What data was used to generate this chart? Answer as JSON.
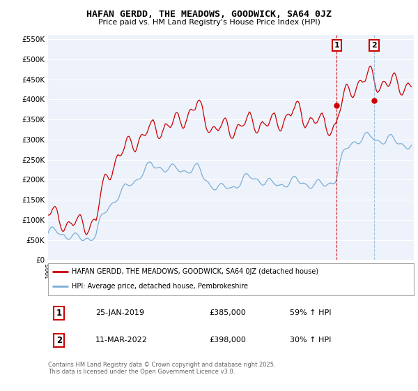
{
  "title": "HAFAN GERDD, THE MEADOWS, GOODWICK, SA64 0JZ",
  "subtitle": "Price paid vs. HM Land Registry's House Price Index (HPI)",
  "legend_label_red": "HAFAN GERDD, THE MEADOWS, GOODWICK, SA64 0JZ (detached house)",
  "legend_label_blue": "HPI: Average price, detached house, Pembrokeshire",
  "annotation1_date": "25-JAN-2019",
  "annotation1_price": "£385,000",
  "annotation1_hpi": "59% ↑ HPI",
  "annotation2_date": "11-MAR-2022",
  "annotation2_price": "£398,000",
  "annotation2_hpi": "30% ↑ HPI",
  "footer": "Contains HM Land Registry data © Crown copyright and database right 2025.\nThis data is licensed under the Open Government Licence v3.0.",
  "ylim": [
    0,
    560000
  ],
  "yticks": [
    0,
    50000,
    100000,
    150000,
    200000,
    250000,
    300000,
    350000,
    400000,
    450000,
    500000,
    550000
  ],
  "color_red": "#cc0000",
  "color_blue": "#7aaed6",
  "color_vline_red": "#cc0000",
  "color_vline_blue": "#7aaed6",
  "background_plot": "#eef2fb",
  "background_fig": "#ffffff",
  "grid_color": "#ffffff",
  "sale1_x": 2019.07,
  "sale1_y": 385000,
  "sale2_x": 2022.19,
  "sale2_y": 398000,
  "xmin": 1995,
  "xmax": 2025.5
}
